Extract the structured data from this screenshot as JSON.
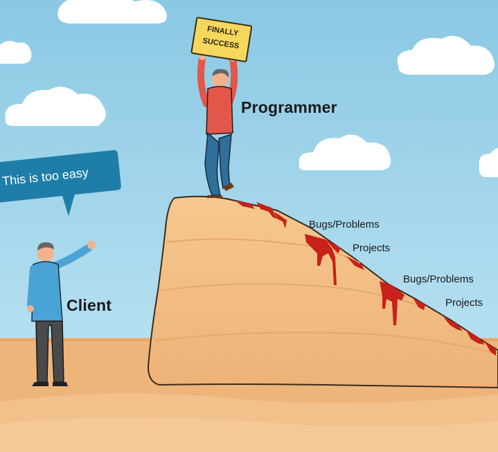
{
  "sign": {
    "line1": "FINALLY",
    "line2": "SUCCESS"
  },
  "speech_bubble": {
    "text": "This is too easy",
    "color": "#1f7ea8"
  },
  "labels": {
    "programmer": "Programmer",
    "client": "Client",
    "slope": [
      "Bugs/Problems",
      "Projects",
      "Bugs/Problems",
      "Projects"
    ]
  },
  "colors": {
    "sky": "#8fcbe6",
    "cloud": "#ffffff",
    "sand": "#eeb57b",
    "cliff": "#f3c089",
    "blood": "#c8201a",
    "programmer_shirt": "#e2574a",
    "programmer_pants": "#2f6f9b",
    "client_shirt": "#4aa3d6",
    "client_pants": "#4a4a4a"
  }
}
